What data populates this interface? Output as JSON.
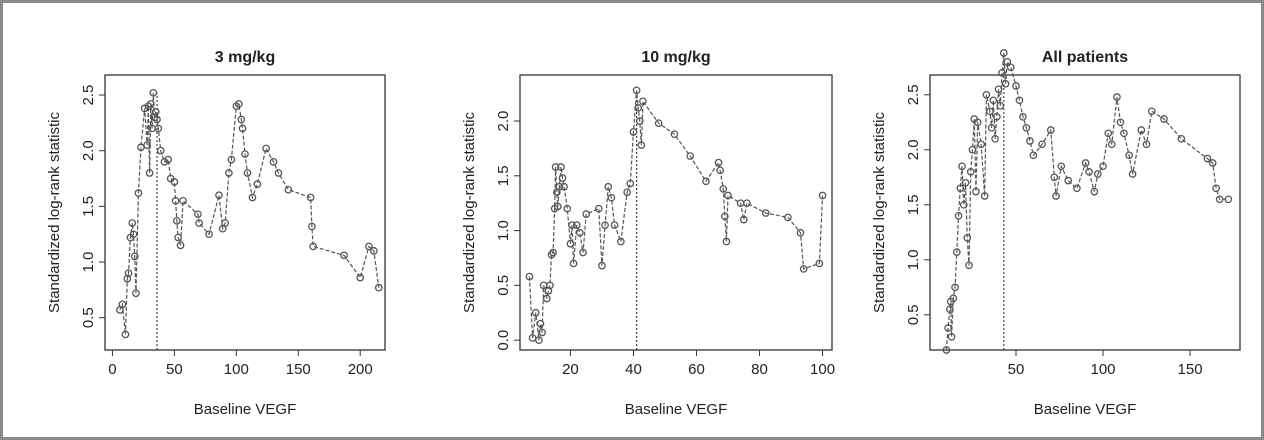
{
  "chart_data": [
    {
      "type": "line",
      "title": "3 mg/kg",
      "x_label": "Baseline VEGF",
      "y_label": "Standardized log-rank statistic",
      "color": "#555555",
      "cutoff": 36,
      "xlim": [
        -6,
        220
      ],
      "ylim": [
        0.21,
        2.68
      ],
      "xticks": [
        0,
        50,
        100,
        150,
        200
      ],
      "yticks": [
        0.5,
        {
          "value": 1,
          "label": "1.0"
        },
        1.5,
        {
          "value": 2,
          "label": "2.0"
        },
        2.5
      ],
      "x": [
        6,
        8,
        10.5,
        12,
        13,
        14.5,
        16,
        17,
        18,
        19,
        21,
        23,
        26,
        28,
        29,
        30,
        31,
        32,
        33,
        34,
        35,
        36,
        37,
        39,
        42,
        45,
        47,
        50,
        51,
        52,
        53,
        55,
        57,
        69,
        70,
        78,
        86,
        89,
        91,
        94,
        96,
        100,
        102,
        104,
        105,
        107,
        109,
        113,
        117,
        124,
        130,
        134,
        142,
        160,
        161,
        162,
        187,
        200,
        207,
        211,
        215
      ],
      "values": [
        0.57,
        0.62,
        0.35,
        0.85,
        0.9,
        1.22,
        1.35,
        1.25,
        1.05,
        0.72,
        1.62,
        2.03,
        2.38,
        2.05,
        2.4,
        1.8,
        2.42,
        2.2,
        2.52,
        2.3,
        2.35,
        2.28,
        2.2,
        2.0,
        1.9,
        1.92,
        1.75,
        1.72,
        1.55,
        1.37,
        1.22,
        1.15,
        1.55,
        1.43,
        1.35,
        1.25,
        1.6,
        1.3,
        1.35,
        1.8,
        1.92,
        2.4,
        2.42,
        2.28,
        2.2,
        1.97,
        1.8,
        1.58,
        1.7,
        2.02,
        1.9,
        1.8,
        1.65,
        1.58,
        1.32,
        1.14,
        1.06,
        0.86,
        1.14,
        1.1,
        0.77
      ]
    },
    {
      "type": "line",
      "title": "10 mg/kg",
      "x_label": "Baseline VEGF",
      "y_label": "Standardized log-rank statistic",
      "color": "#555555",
      "cutoff": 41,
      "xlim": [
        4,
        103
      ],
      "ylim": [
        -0.09,
        2.42
      ],
      "xticks": [
        20,
        40,
        60,
        80,
        100
      ],
      "yticks": [
        {
          "value": 0,
          "label": "0.0"
        },
        0.5,
        {
          "value": 1,
          "label": "1.0"
        },
        1.5,
        {
          "value": 2,
          "label": "2.0"
        }
      ],
      "x": [
        7,
        8,
        9,
        10,
        10.5,
        11,
        11.5,
        12.5,
        13,
        13.5,
        14,
        14.5,
        15,
        15.3,
        15.7,
        16,
        16.5,
        17,
        17.5,
        18,
        19,
        20,
        20.5,
        21,
        22,
        23,
        24,
        25,
        29,
        30,
        31,
        32,
        33,
        34,
        36,
        38,
        39,
        40,
        41,
        41.5,
        42,
        42.5,
        43,
        48,
        53,
        58,
        63,
        67,
        67.5,
        68.5,
        69,
        69.5,
        70,
        74,
        75,
        76,
        82,
        89,
        93,
        94,
        99,
        100
      ],
      "values": [
        0.58,
        0.02,
        0.25,
        0.0,
        0.15,
        0.07,
        0.5,
        0.38,
        0.45,
        0.5,
        0.78,
        0.8,
        1.2,
        1.58,
        1.35,
        1.22,
        1.4,
        1.58,
        1.48,
        1.4,
        1.2,
        0.88,
        1.05,
        0.7,
        1.05,
        0.98,
        0.8,
        1.15,
        1.2,
        0.68,
        1.05,
        1.4,
        1.3,
        1.05,
        0.9,
        1.35,
        1.43,
        1.9,
        2.28,
        2.12,
        2.0,
        1.78,
        2.18,
        1.98,
        1.88,
        1.68,
        1.45,
        1.62,
        1.55,
        1.38,
        1.13,
        0.9,
        1.32,
        1.25,
        1.1,
        1.25,
        1.16,
        1.12,
        0.98,
        0.65,
        0.7,
        1.32
      ]
    },
    {
      "type": "line",
      "title": "All patients",
      "x_label": "Baseline VEGF",
      "y_label": "Standardized log-rank statistic",
      "color": "#555555",
      "cutoff": 43,
      "xlim": [
        0.6,
        178.7
      ],
      "ylim": [
        0.18,
        2.68
      ],
      "xticks": [
        50,
        100,
        150
      ],
      "yticks": [
        0.5,
        {
          "value": 1,
          "label": "1.0"
        },
        1.5,
        {
          "value": 2,
          "label": "2.0"
        },
        2.5
      ],
      "x": [
        10,
        11,
        12,
        12.5,
        13,
        14,
        15,
        16,
        17,
        18,
        19,
        20,
        21,
        22,
        23,
        24,
        25,
        26,
        27,
        28,
        30,
        32,
        33,
        35,
        36,
        37,
        38,
        39,
        40,
        41,
        42,
        43,
        44,
        45,
        47,
        50,
        52,
        54,
        56,
        58,
        60,
        65,
        70,
        72,
        73,
        76,
        80,
        85,
        90,
        92,
        95,
        97,
        100,
        103,
        105,
        108,
        110,
        112,
        115,
        117,
        122,
        125,
        128,
        135,
        145,
        160,
        163,
        165,
        167,
        172
      ],
      "values": [
        0.18,
        0.38,
        0.55,
        0.62,
        0.3,
        0.65,
        0.75,
        1.07,
        1.4,
        1.65,
        1.85,
        1.5,
        1.7,
        1.2,
        0.95,
        1.8,
        2.0,
        2.28,
        1.62,
        2.25,
        2.05,
        1.58,
        2.5,
        2.35,
        2.2,
        2.45,
        2.1,
        2.3,
        2.55,
        2.4,
        2.7,
        2.88,
        2.6,
        2.8,
        2.75,
        2.58,
        2.45,
        2.3,
        2.2,
        2.08,
        1.95,
        2.05,
        2.18,
        1.75,
        1.58,
        1.85,
        1.72,
        1.65,
        1.88,
        1.8,
        1.62,
        1.78,
        1.85,
        2.15,
        2.05,
        2.48,
        2.25,
        2.15,
        1.95,
        1.78,
        2.18,
        2.05,
        2.35,
        2.28,
        2.1,
        1.92,
        1.88,
        1.65,
        1.55,
        1.55
      ]
    }
  ]
}
